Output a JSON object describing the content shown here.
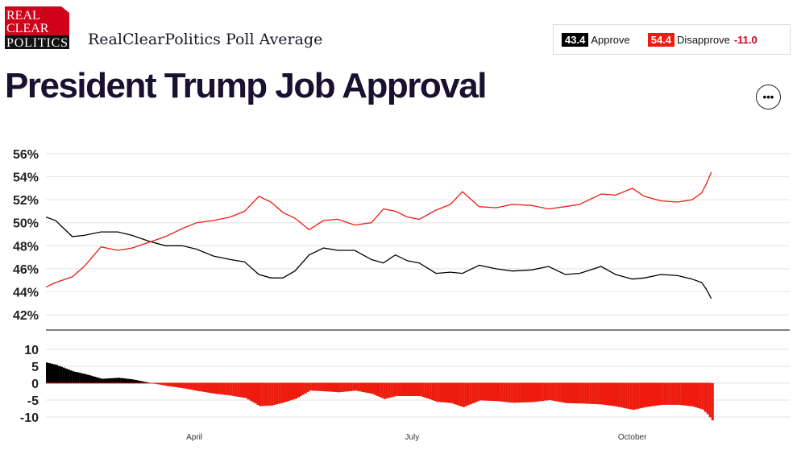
{
  "header": {
    "logo_text": "REAL CLEAR POLITICS",
    "subtitle": "RealClearPolitics Poll Average",
    "title": "President Trump Job Approval",
    "more_icon": "ellipsis-icon"
  },
  "legend": {
    "approve_value": "43.4",
    "approve_label": "Approve",
    "disapprove_value": "54.4",
    "disapprove_label": "Disapprove",
    "spread": "-11.0"
  },
  "colors": {
    "approve": "#000000",
    "disapprove": "#ee1c0e",
    "spread_text": "#d0021b"
  },
  "chart_data": [
    {
      "type": "line",
      "title": "",
      "ylim": [
        42,
        56
      ],
      "yticks": [
        "56%",
        "54%",
        "52%",
        "50%",
        "48%",
        "46%",
        "44%",
        "42%"
      ],
      "ytick_values": [
        56,
        54,
        52,
        50,
        48,
        46,
        44,
        42
      ],
      "grid": true,
      "x": [
        "2025-01-29",
        "2025-02-02",
        "2025-02-09",
        "2025-02-14",
        "2025-02-21",
        "2025-02-28",
        "2025-03-06",
        "2025-03-13",
        "2025-03-20",
        "2025-03-27",
        "2025-04-02",
        "2025-04-09",
        "2025-04-16",
        "2025-04-22",
        "2025-04-28",
        "2025-05-03",
        "2025-05-08",
        "2025-05-13",
        "2025-05-19",
        "2025-05-25",
        "2025-05-31",
        "2025-06-07",
        "2025-06-14",
        "2025-06-19",
        "2025-06-24",
        "2025-06-29",
        "2025-07-04",
        "2025-07-11",
        "2025-07-17",
        "2025-07-22",
        "2025-07-29",
        "2025-08-05",
        "2025-08-12",
        "2025-08-20",
        "2025-08-27",
        "2025-09-03",
        "2025-09-09",
        "2025-09-18",
        "2025-09-24",
        "2025-10-01",
        "2025-10-06",
        "2025-10-13",
        "2025-10-20",
        "2025-10-26",
        "2025-10-30",
        "2025-11-01",
        "2025-11-03"
      ],
      "series": [
        {
          "name": "Approve",
          "values": [
            50.5,
            50.2,
            48.8,
            48.9,
            49.2,
            49.2,
            48.9,
            48.4,
            48.0,
            48.0,
            47.7,
            47.1,
            46.8,
            46.6,
            45.5,
            45.2,
            45.2,
            45.8,
            47.2,
            47.8,
            47.6,
            47.6,
            46.8,
            46.5,
            47.2,
            46.7,
            46.5,
            45.6,
            45.7,
            45.6,
            46.3,
            46.0,
            45.8,
            45.9,
            46.2,
            45.5,
            45.6,
            46.2,
            45.5,
            45.1,
            45.2,
            45.5,
            45.4,
            45.1,
            44.8,
            44.2,
            43.4
          ]
        },
        {
          "name": "Disapprove",
          "values": [
            44.4,
            44.8,
            45.3,
            46.2,
            47.9,
            47.6,
            47.8,
            48.3,
            48.8,
            49.5,
            50.0,
            50.2,
            50.5,
            51.0,
            52.3,
            51.8,
            50.9,
            50.4,
            49.4,
            50.2,
            50.3,
            49.8,
            50.0,
            51.2,
            51.0,
            50.5,
            50.3,
            51.1,
            51.6,
            52.7,
            51.4,
            51.3,
            51.6,
            51.5,
            51.2,
            51.4,
            51.6,
            52.5,
            52.4,
            53.0,
            52.3,
            51.9,
            51.8,
            52.0,
            52.6,
            53.4,
            54.4
          ]
        }
      ]
    },
    {
      "type": "bar",
      "title": "",
      "ylim": [
        -11,
        12
      ],
      "yticks": [
        "10",
        "5",
        "0",
        "-5",
        "-10"
      ],
      "ytick_values": [
        10,
        5,
        0,
        -5,
        -10
      ],
      "xticks": [
        "April",
        "July",
        "October"
      ],
      "xtick_dates": [
        "2025-04-01",
        "2025-07-01",
        "2025-10-01"
      ]
    }
  ]
}
